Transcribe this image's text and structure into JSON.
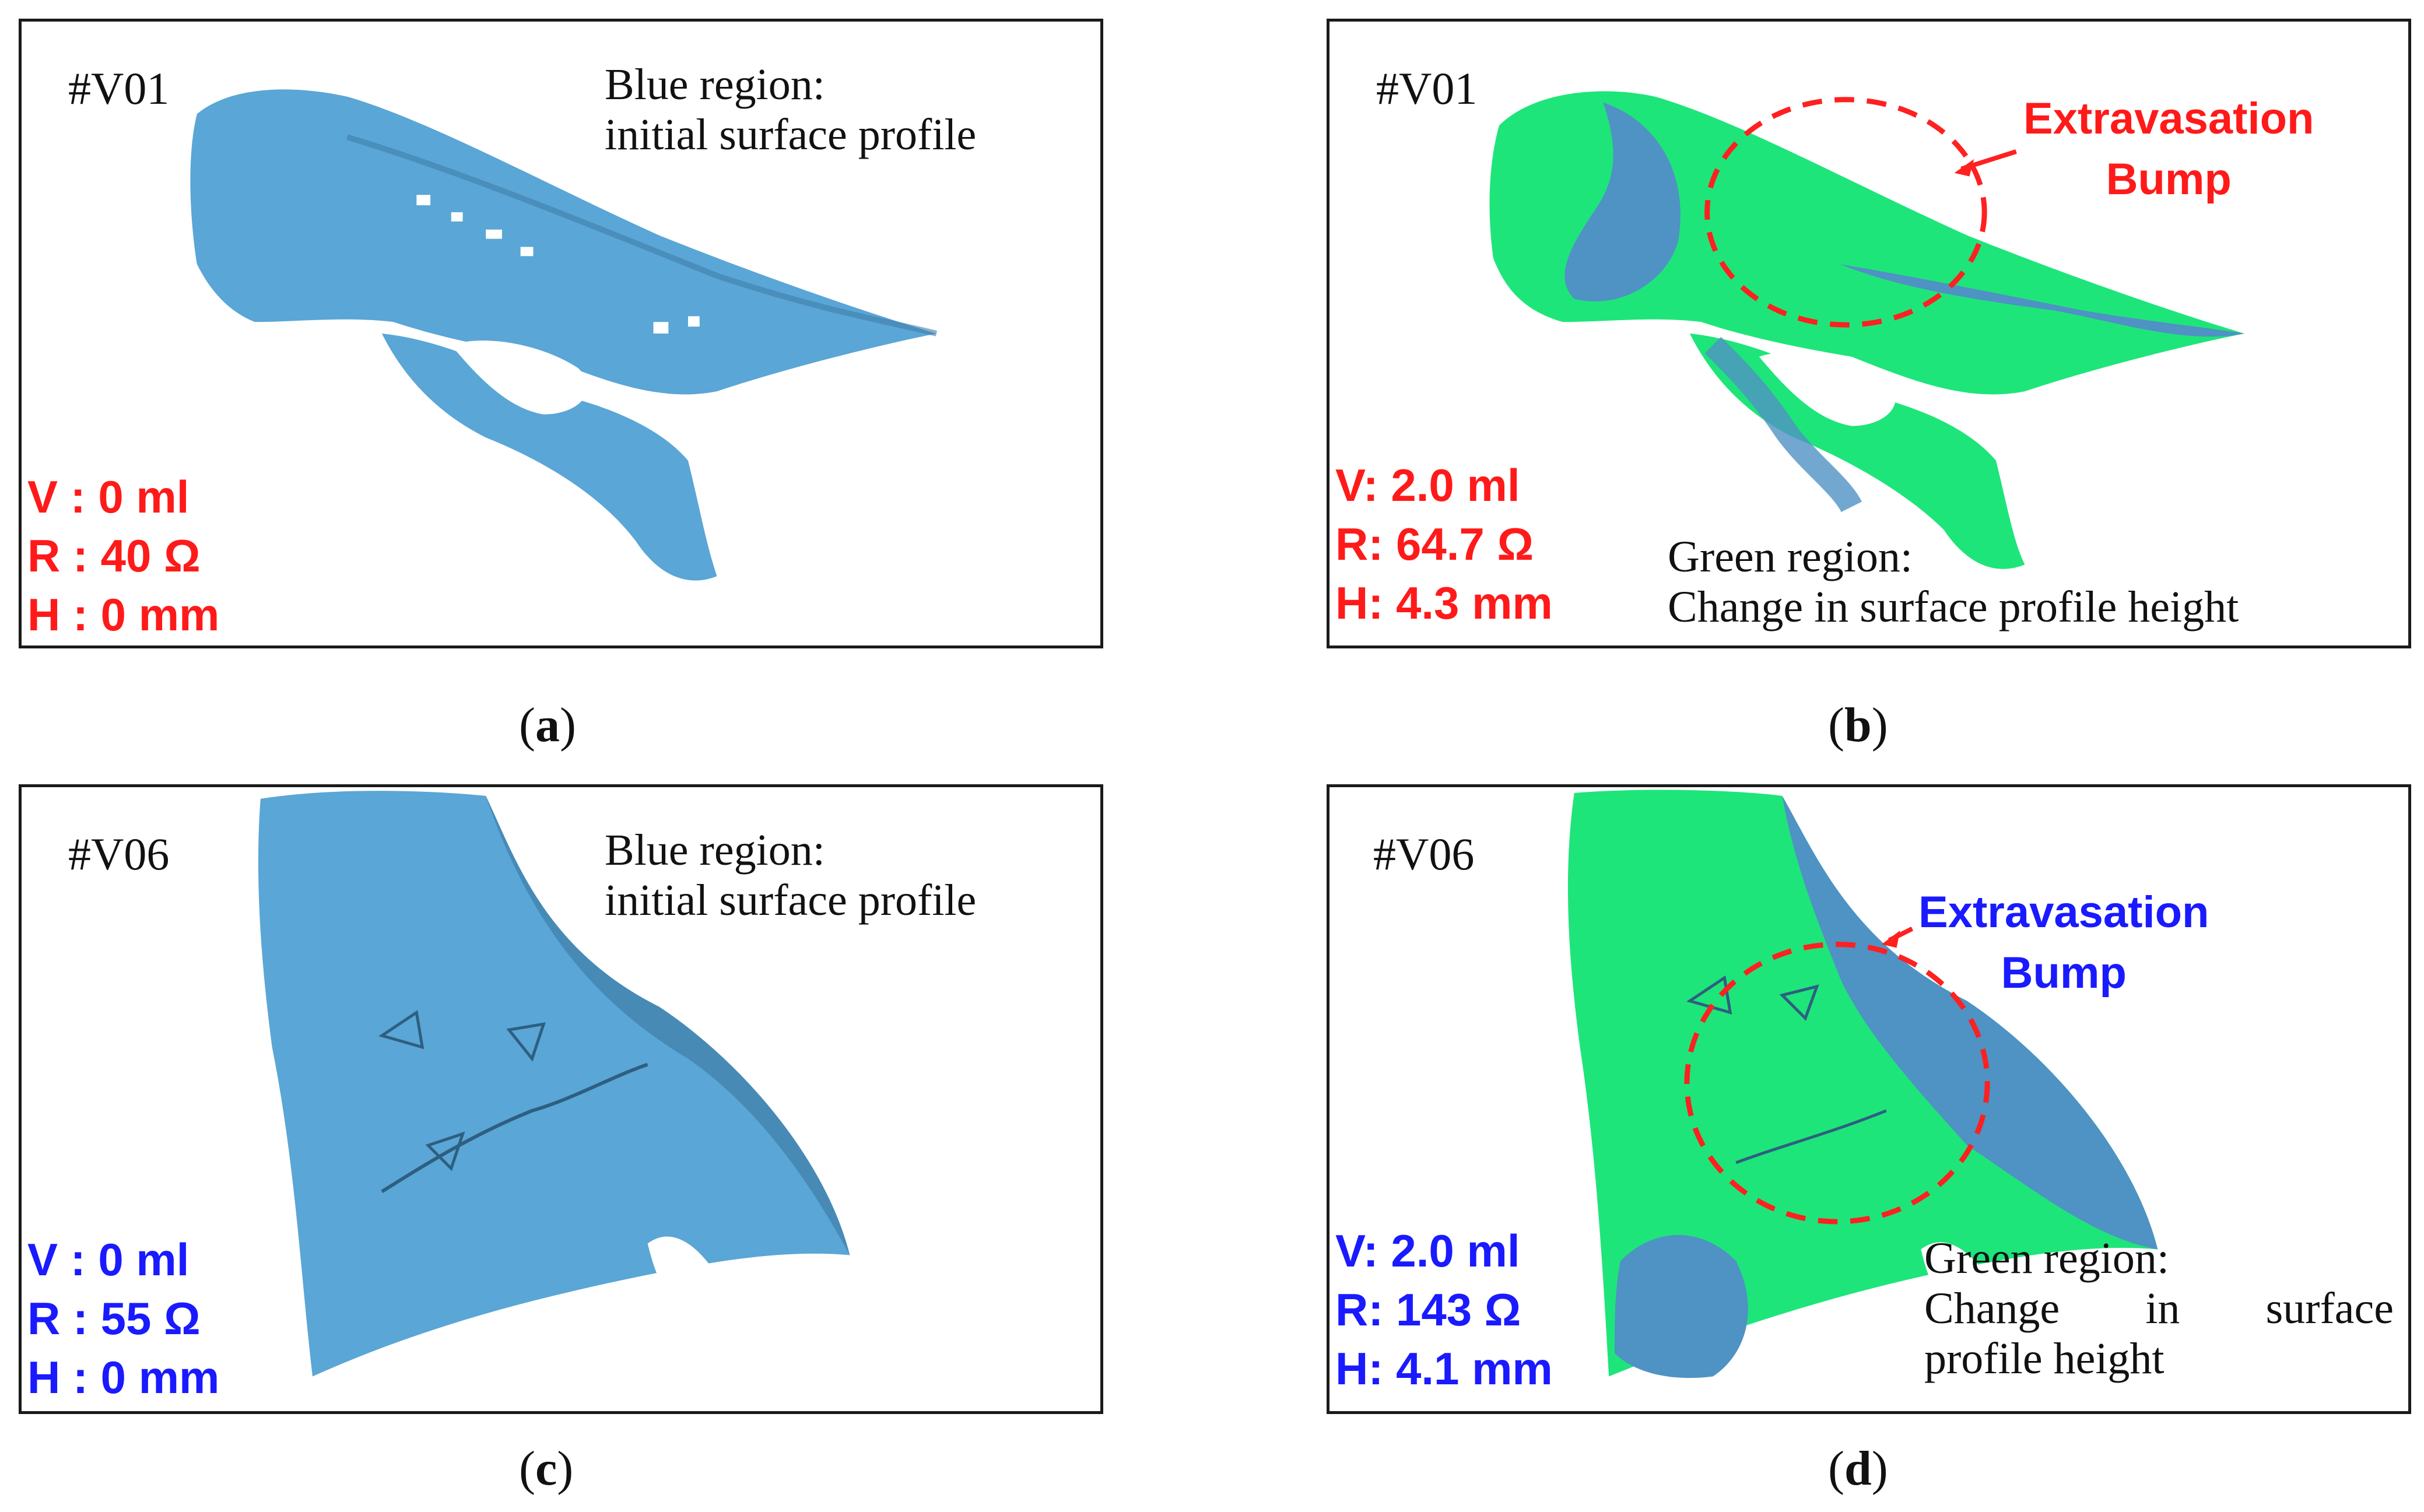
{
  "panels": [
    {
      "id": "#V01",
      "note": [
        "Blue region:",
        "initial surface profile"
      ],
      "stats": [
        "V : 0 ml",
        "R : 40 Ω",
        "H : 0 mm"
      ],
      "caption_letter": "a",
      "stats_color": "#ff1a1a"
    },
    {
      "id": "#V01",
      "callout": [
        "Extravasation",
        "Bump"
      ],
      "note": [
        "Green region:",
        "Change in surface profile height"
      ],
      "stats": [
        "V: 2.0 ml",
        "R: 64.7 Ω",
        "H: 4.3 mm"
      ],
      "caption_letter": "b",
      "stats_color": "#ff1a1a",
      "callout_color": "#ff1a1a"
    },
    {
      "id": "#V06",
      "note": [
        "Blue region:",
        "initial surface profile"
      ],
      "stats": [
        "V : 0 ml",
        "R : 55 Ω",
        "H : 0 mm"
      ],
      "caption_letter": "c",
      "stats_color": "#1a1aff"
    },
    {
      "id": "#V06",
      "callout": [
        "Extravasation",
        "Bump"
      ],
      "note": [
        "Green region:",
        "Change",
        "in",
        "surface",
        "profile height"
      ],
      "stats": [
        "V: 2.0 ml",
        "R: 143 Ω",
        "H: 4.1 mm"
      ],
      "caption_letter": "d",
      "stats_color": "#1a1aff",
      "callout_color": "#1a1aff"
    }
  ],
  "caption_open": "(",
  "caption_close": ")",
  "colors": {
    "surface_blue": "#5aa6d6",
    "surface_blue_dark": "#3f7fa8",
    "change_green": "#1ee57a",
    "dashed_circle": "#ff2020"
  }
}
